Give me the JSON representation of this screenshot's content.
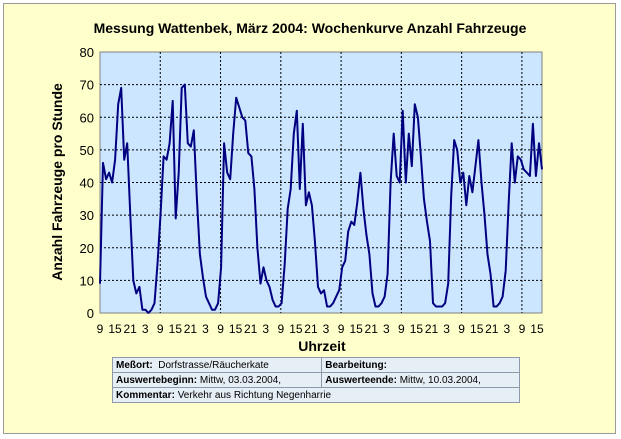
{
  "chart_data": {
    "type": "line",
    "title": "Messung Wattenbek, März 2004: Wochenkurve Anzahl Fahrzeuge",
    "xlabel": "Uhrzeit",
    "ylabel": "Anzahl Fahrzeuge pro Stunde",
    "ylim": [
      0,
      80
    ],
    "yticks": [
      0,
      10,
      20,
      30,
      40,
      50,
      60,
      70,
      80
    ],
    "xlim": [
      9,
      185
    ],
    "x_tick_hours": [
      9,
      15,
      21,
      27,
      33,
      39,
      45,
      51,
      57,
      63,
      69,
      75,
      81,
      87,
      93,
      99,
      105,
      111,
      117,
      123,
      129,
      135,
      141,
      147,
      153,
      159,
      165,
      171,
      177,
      183
    ],
    "x_tick_labels": [
      "9",
      "15",
      "21",
      "3",
      "9",
      "15",
      "21",
      "3",
      "9",
      "15",
      "21",
      "3",
      "9",
      "15",
      "21",
      "3",
      "9",
      "15",
      "21",
      "3",
      "9",
      "15",
      "21",
      "3",
      "9",
      "15",
      "21",
      "3",
      "9",
      "15"
    ],
    "grid": true,
    "plot_background": "#cce6ff",
    "line_color": "#000080",
    "series": [
      {
        "values": [
          9,
          46,
          41,
          43,
          40,
          47,
          64,
          69,
          47,
          52,
          30,
          10,
          6,
          8,
          1,
          1,
          0,
          1,
          3,
          15,
          30,
          48,
          47,
          52,
          65,
          29,
          43,
          69,
          70,
          52,
          51,
          56,
          35,
          18,
          11,
          5,
          3,
          1,
          1,
          3,
          14,
          52,
          43,
          41,
          55,
          66,
          63,
          60,
          59,
          49,
          48,
          38,
          20,
          9,
          14,
          10,
          8,
          4,
          2,
          2,
          3,
          15,
          32,
          38,
          55,
          62,
          38,
          58,
          33,
          37,
          33,
          22,
          8,
          6,
          7,
          2,
          2,
          3,
          5,
          7,
          14,
          16,
          25,
          28,
          27,
          34,
          43,
          32,
          24,
          18,
          6,
          2,
          2,
          3,
          5,
          12,
          40,
          55,
          42,
          40,
          62,
          40,
          55,
          45,
          64,
          60,
          48,
          35,
          28,
          22,
          3,
          2,
          2,
          2,
          3,
          9,
          36,
          53,
          50,
          40,
          43,
          33,
          42,
          37,
          45,
          53,
          40,
          30,
          18,
          12,
          2,
          2,
          3,
          5,
          13,
          34,
          52,
          40,
          48,
          47,
          44,
          43,
          42,
          58,
          42,
          52,
          44
        ]
      }
    ],
    "info_table": {
      "messort_label": "Meßort:",
      "messort_value": "Dorfstrasse/Räucherkate",
      "bearbeitung_label": "Bearbeitung:",
      "bearbeitung_value": "",
      "beginn_label": "Auswertebeginn:",
      "beginn_value": "Mittw, 03.03.2004,",
      "ende_label": "Auswerteende:",
      "ende_value": "Mittw, 10.03.2004,",
      "kommentar_label": "Kommentar:",
      "kommentar_value": "Verkehr aus Richtung Negenharrie"
    }
  }
}
